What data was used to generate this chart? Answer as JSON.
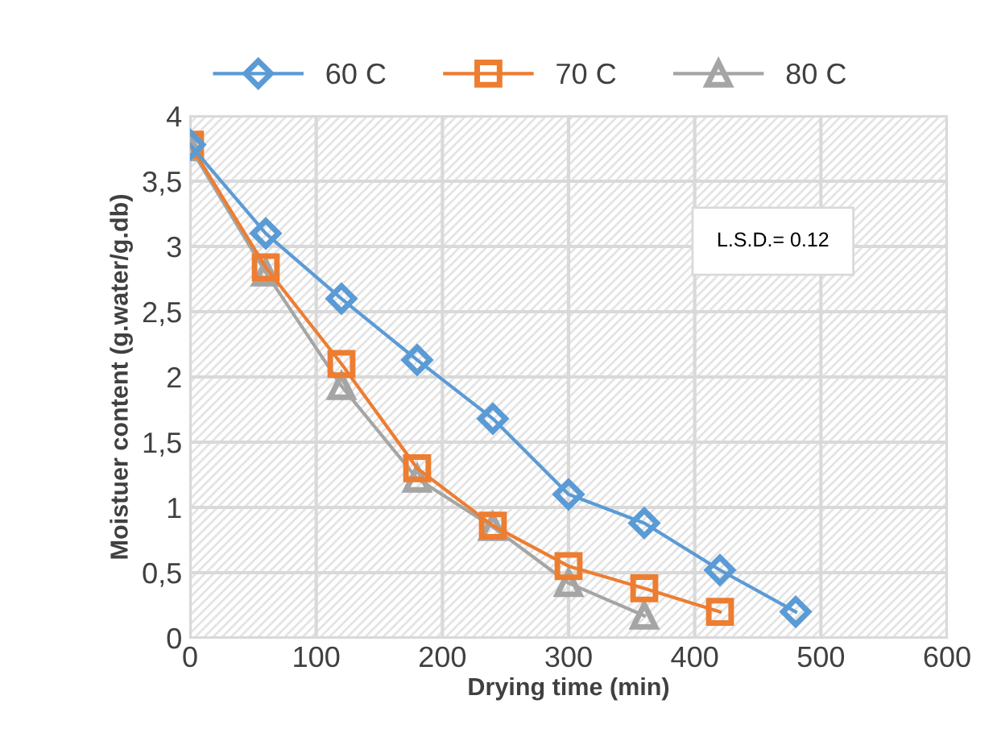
{
  "chart_data": {
    "type": "line",
    "xlabel": "Drying time (min)",
    "ylabel": "Moistuer content (g.water/g.db)",
    "x": [
      0,
      60,
      120,
      180,
      240,
      300,
      360,
      420,
      480
    ],
    "series": [
      {
        "name": "60 C",
        "color": "#5b9bd5",
        "marker": "diamond",
        "values": [
          3.78,
          3.1,
          2.6,
          2.13,
          1.68,
          1.1,
          0.88,
          0.52,
          0.2
        ]
      },
      {
        "name": "70 C",
        "color": "#ed7d31",
        "marker": "square",
        "values": [
          3.78,
          2.84,
          2.1,
          1.3,
          0.86,
          0.55,
          0.38,
          0.2,
          null
        ]
      },
      {
        "name": "80 C",
        "color": "#a5a5a5",
        "marker": "triangle",
        "values": [
          3.76,
          2.8,
          1.93,
          1.22,
          0.85,
          0.42,
          0.17,
          null,
          null
        ]
      }
    ],
    "xlim": [
      0,
      600
    ],
    "xticks": [
      0,
      100,
      200,
      300,
      400,
      500,
      600
    ],
    "ylim": [
      0,
      4
    ],
    "yticks": [
      0,
      {
        "value": 0.5,
        "label": "0,5"
      },
      1,
      {
        "value": 1.5,
        "label": "1,5"
      },
      2,
      {
        "value": 2.5,
        "label": "2,5"
      },
      3,
      {
        "value": 3.5,
        "label": "3,5"
      },
      4
    ],
    "annotations": [
      "L.S.D.= 0.12"
    ],
    "grid": true,
    "legend": "top",
    "line_style": "solid"
  }
}
